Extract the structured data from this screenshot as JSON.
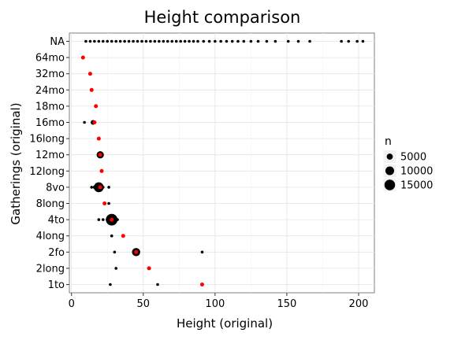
{
  "chart_data": {
    "type": "scatter",
    "title": "Height comparison",
    "xlabel": "Height (original)",
    "ylabel": "Gatherings (original)",
    "xlim": [
      -1.5,
      211
    ],
    "x_ticks": [
      0,
      50,
      100,
      150,
      200
    ],
    "categories": [
      "1to",
      "2long",
      "2fo",
      "4long",
      "4to",
      "8long",
      "8vo",
      "12long",
      "12mo",
      "16long",
      "16mo",
      "18mo",
      "24mo",
      "32mo",
      "64mo",
      "NA"
    ],
    "grid": true,
    "legend": {
      "title": "n",
      "placement": "right",
      "entries": [
        {
          "label": "5000",
          "n": 5000
        },
        {
          "label": "10000",
          "n": 10000
        },
        {
          "label": "15000",
          "n": 15000
        }
      ]
    },
    "series": [
      {
        "color": "#000000",
        "points": [
          {
            "category": "1to",
            "x": 27,
            "n": 60
          },
          {
            "category": "1to",
            "x": 60,
            "n": 300
          },
          {
            "category": "2long",
            "x": 31,
            "n": 30
          },
          {
            "category": "2fo",
            "x": 30,
            "n": 400
          },
          {
            "category": "2fo",
            "x": 45,
            "n": 9000
          },
          {
            "category": "2fo",
            "x": 91,
            "n": 30
          },
          {
            "category": "4long",
            "x": 28,
            "n": 30
          },
          {
            "category": "4to",
            "x": 19,
            "n": 500
          },
          {
            "category": "4to",
            "x": 22,
            "n": 600
          },
          {
            "category": "4to",
            "x": 25,
            "n": 1500
          },
          {
            "category": "4to",
            "x": 28,
            "n": 18000
          },
          {
            "category": "4to",
            "x": 32,
            "n": 400
          },
          {
            "category": "8long",
            "x": 26,
            "n": 40
          },
          {
            "category": "8vo",
            "x": 14,
            "n": 700
          },
          {
            "category": "8vo",
            "x": 16,
            "n": 1500
          },
          {
            "category": "8vo",
            "x": 19,
            "n": 13000
          },
          {
            "category": "8vo",
            "x": 22,
            "n": 900
          },
          {
            "category": "8vo",
            "x": 26,
            "n": 200
          },
          {
            "category": "12mo",
            "x": 20,
            "n": 7000
          },
          {
            "category": "16mo",
            "x": 9,
            "n": 40
          },
          {
            "category": "16mo",
            "x": 15,
            "n": 3000
          },
          {
            "category": "NA",
            "x": 10,
            "n": 300
          },
          {
            "category": "NA",
            "x": 13,
            "n": 300
          },
          {
            "category": "NA",
            "x": 16,
            "n": 300
          },
          {
            "category": "NA",
            "x": 19,
            "n": 300
          },
          {
            "category": "NA",
            "x": 22,
            "n": 300
          },
          {
            "category": "NA",
            "x": 25,
            "n": 300
          },
          {
            "category": "NA",
            "x": 28,
            "n": 300
          },
          {
            "category": "NA",
            "x": 31,
            "n": 300
          },
          {
            "category": "NA",
            "x": 34,
            "n": 300
          },
          {
            "category": "NA",
            "x": 37,
            "n": 300
          },
          {
            "category": "NA",
            "x": 40,
            "n": 300
          },
          {
            "category": "NA",
            "x": 43,
            "n": 300
          },
          {
            "category": "NA",
            "x": 46,
            "n": 300
          },
          {
            "category": "NA",
            "x": 49,
            "n": 300
          },
          {
            "category": "NA",
            "x": 52,
            "n": 300
          },
          {
            "category": "NA",
            "x": 55,
            "n": 300
          },
          {
            "category": "NA",
            "x": 58,
            "n": 300
          },
          {
            "category": "NA",
            "x": 61,
            "n": 300
          },
          {
            "category": "NA",
            "x": 64,
            "n": 300
          },
          {
            "category": "NA",
            "x": 67,
            "n": 300
          },
          {
            "category": "NA",
            "x": 70,
            "n": 300
          },
          {
            "category": "NA",
            "x": 73,
            "n": 300
          },
          {
            "category": "NA",
            "x": 76,
            "n": 300
          },
          {
            "category": "NA",
            "x": 79,
            "n": 300
          },
          {
            "category": "NA",
            "x": 82,
            "n": 300
          },
          {
            "category": "NA",
            "x": 85,
            "n": 300
          },
          {
            "category": "NA",
            "x": 88,
            "n": 300
          },
          {
            "category": "NA",
            "x": 92,
            "n": 200
          },
          {
            "category": "NA",
            "x": 96,
            "n": 200
          },
          {
            "category": "NA",
            "x": 100,
            "n": 200
          },
          {
            "category": "NA",
            "x": 104,
            "n": 200
          },
          {
            "category": "NA",
            "x": 108,
            "n": 150
          },
          {
            "category": "NA",
            "x": 112,
            "n": 150
          },
          {
            "category": "NA",
            "x": 116,
            "n": 100
          },
          {
            "category": "NA",
            "x": 120,
            "n": 100
          },
          {
            "category": "NA",
            "x": 125,
            "n": 60
          },
          {
            "category": "NA",
            "x": 130,
            "n": 40
          },
          {
            "category": "NA",
            "x": 136,
            "n": 40
          },
          {
            "category": "NA",
            "x": 142,
            "n": 30
          },
          {
            "category": "NA",
            "x": 151,
            "n": 30
          },
          {
            "category": "NA",
            "x": 158,
            "n": 30
          },
          {
            "category": "NA",
            "x": 166,
            "n": 30
          },
          {
            "category": "NA",
            "x": 188,
            "n": 30
          },
          {
            "category": "NA",
            "x": 193,
            "n": 30
          },
          {
            "category": "NA",
            "x": 199,
            "n": 30
          },
          {
            "category": "NA",
            "x": 203,
            "n": 30
          }
        ]
      },
      {
        "color": "#ff0000",
        "points": [
          {
            "category": "1to",
            "x": 91
          },
          {
            "category": "2long",
            "x": 54
          },
          {
            "category": "2fo",
            "x": 45
          },
          {
            "category": "4long",
            "x": 36
          },
          {
            "category": "4to",
            "x": 28
          },
          {
            "category": "8long",
            "x": 23
          },
          {
            "category": "8vo",
            "x": 20
          },
          {
            "category": "12long",
            "x": 21
          },
          {
            "category": "12mo",
            "x": 20
          },
          {
            "category": "16long",
            "x": 19
          },
          {
            "category": "16mo",
            "x": 16
          },
          {
            "category": "18mo",
            "x": 17
          },
          {
            "category": "24mo",
            "x": 14
          },
          {
            "category": "32mo",
            "x": 13
          },
          {
            "category": "64mo",
            "x": 8
          }
        ]
      }
    ]
  }
}
